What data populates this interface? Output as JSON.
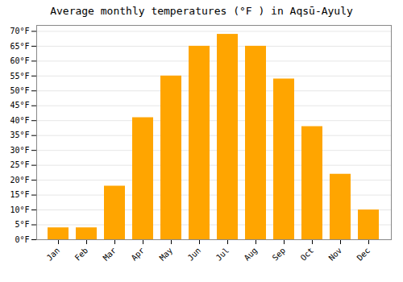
{
  "chart_data": {
    "type": "bar",
    "title": "Average monthly temperatures (°F ) in Aqsū-Ayuly",
    "categories": [
      "Jan",
      "Feb",
      "Mar",
      "Apr",
      "May",
      "Jun",
      "Jul",
      "Aug",
      "Sep",
      "Oct",
      "Nov",
      "Dec"
    ],
    "values": [
      4,
      4,
      18,
      41,
      55,
      65,
      69,
      65,
      54,
      38,
      22,
      10
    ],
    "color": "#FFA500",
    "ylim": [
      0,
      72
    ],
    "yticks": [
      {
        "value": 0,
        "label": "0°F"
      },
      {
        "value": 5,
        "label": "5°F"
      },
      {
        "value": 10,
        "label": "10°F"
      },
      {
        "value": 15,
        "label": "15°F"
      },
      {
        "value": 20,
        "label": "20°F"
      },
      {
        "value": 25,
        "label": "25°F"
      },
      {
        "value": 30,
        "label": "30°F"
      },
      {
        "value": 35,
        "label": "35°F"
      },
      {
        "value": 40,
        "label": "40°F"
      },
      {
        "value": 45,
        "label": "45°F"
      },
      {
        "value": 50,
        "label": "50°F"
      },
      {
        "value": 55,
        "label": "55°F"
      },
      {
        "value": 60,
        "label": "60°F"
      },
      {
        "value": 65,
        "label": "65°F"
      },
      {
        "value": 70,
        "label": "70°F"
      }
    ],
    "grid": true
  }
}
